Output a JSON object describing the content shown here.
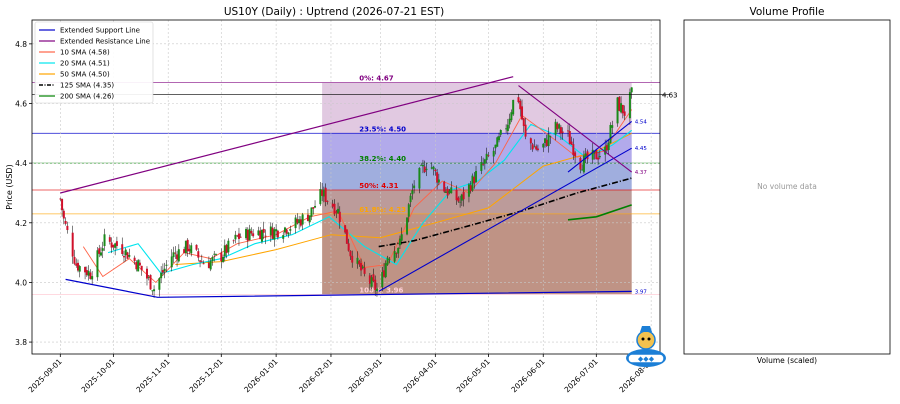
{
  "chart_data": [
    {
      "type": "candlestick",
      "title": "US10Y (Daily) : Uptrend (2026-07-21 EST)",
      "ylabel": "Price (USD)",
      "xlabel": "",
      "ylim": [
        3.76,
        4.88
      ],
      "xlim": [
        "2025-08-16",
        "2026-08-06"
      ],
      "grid": true,
      "yticks": [
        3.8,
        4.0,
        4.2,
        4.4,
        4.6,
        4.8
      ],
      "ytick_labels": [
        "3.8",
        "4.0",
        "4.2",
        "4.4",
        "4.6",
        "4.8"
      ],
      "xticks": [
        "2025-09-01",
        "2025-10-01",
        "2025-11-01",
        "2025-12-01",
        "2026-01-01",
        "2026-02-01",
        "2026-03-01",
        "2026-04-01",
        "2026-05-01",
        "2026-06-01",
        "2026-07-01",
        "2026-08-01"
      ],
      "legend_position": "top-left",
      "legend": [
        {
          "label": "Extended Support Line",
          "color": "#0000cc",
          "style": "solid"
        },
        {
          "label": "Extended Resistance Line",
          "color": "#800080",
          "style": "solid"
        },
        {
          "label": "10 SMA (4.58)",
          "color": "#ff6347",
          "style": "solid"
        },
        {
          "label": "20 SMA (4.51)",
          "color": "#00e5ee",
          "style": "solid"
        },
        {
          "label": "50 SMA (4.50)",
          "color": "#ffa500",
          "style": "solid"
        },
        {
          "label": "125 SMA (4.35)",
          "color": "#000000",
          "style": "dashdot"
        },
        {
          "label": "200 SMA (4.26)",
          "color": "#008000",
          "style": "solid"
        }
      ],
      "current_price_label": "4.63",
      "current_price": 4.63,
      "fibonacci": {
        "start_date": "2026-01-27",
        "end_date": "2026-07-21",
        "levels": [
          {
            "label": "0%: 4.67",
            "value": 4.67,
            "color": "#800080",
            "fill": "#dcc0dc"
          },
          {
            "label": "23.5%: 4.50",
            "value": 4.5,
            "color": "#0000cc",
            "fill": "#a49be8"
          },
          {
            "label": "38.2%: 4.40",
            "value": 4.4,
            "color": "#008000",
            "fill": "#8fa0d8"
          },
          {
            "label": "50%: 4.31",
            "value": 4.31,
            "color": "#e00000",
            "fill": "#b08a88"
          },
          {
            "label": "61.8%: 4.23",
            "value": 4.23,
            "color": "#ffa500",
            "fill": "#b48070"
          },
          {
            "label": "100%: 3.96",
            "value": 3.96,
            "color": "#ffc0cb",
            "fill": "#b07a6e"
          }
        ]
      },
      "support_line": {
        "points": [
          [
            "2025-09-04",
            4.01
          ],
          [
            "2025-10-26",
            3.95
          ],
          [
            "2026-07-21",
            3.97
          ]
        ],
        "end_label": "3.97"
      },
      "resistance_line": {
        "points": [
          [
            "2025-09-01",
            4.3
          ],
          [
            "2026-05-15",
            4.69
          ]
        ]
      },
      "trend_channel": {
        "lines": [
          {
            "color": "#0000cc",
            "points": [
              [
                "2026-02-28",
                3.97
              ],
              [
                "2026-07-21",
                4.45
              ]
            ],
            "end_label": "4.45"
          },
          {
            "color": "#0000cc",
            "points": [
              [
                "2026-06-15",
                4.37
              ],
              [
                "2026-07-21",
                4.54
              ]
            ],
            "end_label": "4.54"
          },
          {
            "color": "#800080",
            "points": [
              [
                "2026-05-18",
                4.66
              ],
              [
                "2026-07-21",
                4.37
              ]
            ],
            "end_label": "4.37"
          }
        ]
      },
      "sma_125": [
        [
          "2026-02-28",
          4.12
        ],
        [
          "2026-03-20",
          4.14
        ],
        [
          "2026-04-20",
          4.19
        ],
        [
          "2026-05-20",
          4.24
        ],
        [
          "2026-06-20",
          4.3
        ],
        [
          "2026-07-21",
          4.35
        ]
      ],
      "sma_200": [
        [
          "2026-06-15",
          4.21
        ],
        [
          "2026-07-01",
          4.22
        ],
        [
          "2026-07-21",
          4.26
        ]
      ],
      "sma_50": [
        [
          "2025-11-05",
          4.06
        ],
        [
          "2025-12-01",
          4.07
        ],
        [
          "2026-01-01",
          4.11
        ],
        [
          "2026-02-01",
          4.16
        ],
        [
          "2026-03-01",
          4.15
        ],
        [
          "2026-04-01",
          4.2
        ],
        [
          "2026-05-01",
          4.25
        ],
        [
          "2026-06-01",
          4.39
        ],
        [
          "2026-07-01",
          4.44
        ],
        [
          "2026-07-21",
          4.5
        ]
      ],
      "sma_20": [
        [
          "2025-09-28",
          4.1
        ],
        [
          "2025-10-15",
          4.13
        ],
        [
          "2025-10-28",
          4.03
        ],
        [
          "2025-11-15",
          4.06
        ],
        [
          "2025-12-01",
          4.08
        ],
        [
          "2025-12-20",
          4.13
        ],
        [
          "2026-01-10",
          4.16
        ],
        [
          "2026-01-31",
          4.22
        ],
        [
          "2026-02-20",
          4.12
        ],
        [
          "2026-03-10",
          4.06
        ],
        [
          "2026-03-25",
          4.2
        ],
        [
          "2026-04-10",
          4.31
        ],
        [
          "2026-04-25",
          4.34
        ],
        [
          "2026-05-10",
          4.41
        ],
        [
          "2026-05-25",
          4.53
        ],
        [
          "2026-06-10",
          4.49
        ],
        [
          "2026-06-25",
          4.42
        ],
        [
          "2026-07-10",
          4.46
        ],
        [
          "2026-07-21",
          4.51
        ]
      ],
      "sma_10": [
        [
          "2025-09-14",
          4.12
        ],
        [
          "2025-09-25",
          4.02
        ],
        [
          "2025-10-10",
          4.08
        ],
        [
          "2025-10-25",
          4.0
        ],
        [
          "2025-11-10",
          4.1
        ],
        [
          "2025-11-25",
          4.08
        ],
        [
          "2025-12-10",
          4.13
        ],
        [
          "2026-01-01",
          4.16
        ],
        [
          "2026-01-20",
          4.22
        ],
        [
          "2026-02-05",
          4.24
        ],
        [
          "2026-02-20",
          4.05
        ],
        [
          "2026-03-05",
          4.06
        ],
        [
          "2026-03-20",
          4.25
        ],
        [
          "2026-04-05",
          4.34
        ],
        [
          "2026-04-20",
          4.3
        ],
        [
          "2026-05-05",
          4.4
        ],
        [
          "2026-05-20",
          4.56
        ],
        [
          "2026-06-05",
          4.49
        ],
        [
          "2026-06-20",
          4.42
        ],
        [
          "2026-07-05",
          4.44
        ],
        [
          "2026-07-21",
          4.58
        ]
      ],
      "close_path": [
        [
          "2025-09-01",
          4.28
        ],
        [
          "2025-09-03",
          4.21
        ],
        [
          "2025-09-10",
          4.06
        ],
        [
          "2025-09-18",
          4.03
        ],
        [
          "2025-09-26",
          4.14
        ],
        [
          "2025-10-05",
          4.12
        ],
        [
          "2025-10-15",
          4.06
        ],
        [
          "2025-10-24",
          3.98
        ],
        [
          "2025-11-03",
          4.09
        ],
        [
          "2025-11-12",
          4.12
        ],
        [
          "2025-11-22",
          4.06
        ],
        [
          "2025-12-01",
          4.09
        ],
        [
          "2025-12-10",
          4.15
        ],
        [
          "2025-12-20",
          4.17
        ],
        [
          "2025-12-30",
          4.17
        ],
        [
          "2026-01-10",
          4.19
        ],
        [
          "2026-01-20",
          4.23
        ],
        [
          "2026-01-27",
          4.3
        ],
        [
          "2026-02-05",
          4.24
        ],
        [
          "2026-02-12",
          4.1
        ],
        [
          "2026-02-20",
          4.02
        ],
        [
          "2026-02-28",
          3.97
        ],
        [
          "2026-03-05",
          4.09
        ],
        [
          "2026-03-12",
          4.13
        ],
        [
          "2026-03-20",
          4.33
        ],
        [
          "2026-03-28",
          4.41
        ],
        [
          "2026-04-05",
          4.32
        ],
        [
          "2026-04-15",
          4.27
        ],
        [
          "2026-04-25",
          4.37
        ],
        [
          "2026-05-05",
          4.45
        ],
        [
          "2026-05-12",
          4.54
        ],
        [
          "2026-05-17",
          4.65
        ],
        [
          "2026-05-22",
          4.48
        ],
        [
          "2026-05-30",
          4.44
        ],
        [
          "2026-06-08",
          4.52
        ],
        [
          "2026-06-15",
          4.49
        ],
        [
          "2026-06-22",
          4.4
        ],
        [
          "2026-06-29",
          4.42
        ],
        [
          "2026-07-06",
          4.44
        ],
        [
          "2026-07-13",
          4.6
        ],
        [
          "2026-07-17",
          4.57
        ],
        [
          "2026-07-21",
          4.63
        ]
      ]
    },
    {
      "type": "bar",
      "title": "Volume Profile",
      "xlabel": "Volume (scaled)",
      "ylabel": "",
      "empty_message": "No volume data"
    }
  ]
}
